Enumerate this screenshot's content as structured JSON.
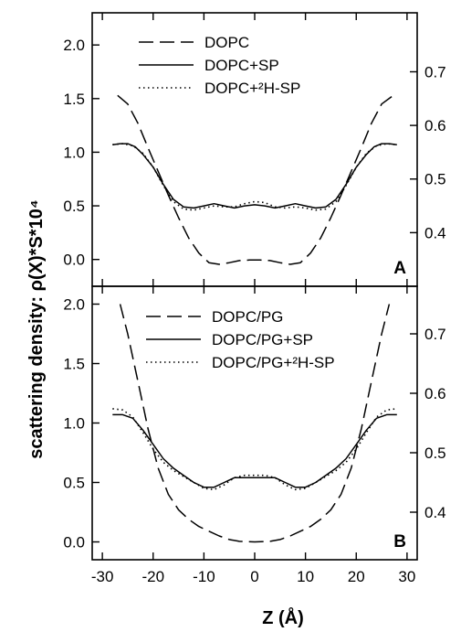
{
  "chart_data": {
    "type": "line",
    "shared_x_axis": {
      "label": "Z (Å)",
      "xlim": [
        -32,
        32
      ],
      "ticks": [
        -30,
        -20,
        -10,
        0,
        10,
        20,
        30
      ],
      "tick_labels": [
        "-30",
        "-20",
        "-10",
        "0",
        "10",
        "20",
        "30"
      ]
    },
    "shared_y_label": "scattering density: ρ(X)*S*10⁴",
    "panels": [
      {
        "letter": "A",
        "ylim_left": [
          -0.25,
          2.3
        ],
        "yticks_left": [
          0.0,
          0.5,
          1.0,
          1.5,
          2.0
        ],
        "ytick_labels_left": [
          "0.0",
          "0.5",
          "1.0",
          "1.5",
          "2.0"
        ],
        "yticks_right": [
          0.4,
          0.5,
          0.6,
          0.7
        ],
        "ytick_labels_right": [
          "0.4",
          "0.5",
          "0.6",
          "0.7"
        ],
        "right_axis_map": {
          "left_value_a": 0.0,
          "right_value_a": 0.35,
          "left_value_b": 2.0,
          "right_value_b": 0.75
        },
        "series": [
          {
            "name": "DOPC",
            "style": "dashed",
            "points": [
              [
                -27,
                1.53
              ],
              [
                -25,
                1.45
              ],
              [
                -23,
                1.27
              ],
              [
                -21,
                1.04
              ],
              [
                -19,
                0.82
              ],
              [
                -17,
                0.6
              ],
              [
                -15,
                0.39
              ],
              [
                -13,
                0.2
              ],
              [
                -11,
                0.06
              ],
              [
                -9,
                -0.03
              ],
              [
                -7,
                -0.045
              ],
              [
                -5,
                -0.03
              ],
              [
                -3,
                -0.01
              ],
              [
                -1,
                -0.005
              ],
              [
                0,
                -0.005
              ],
              [
                1,
                -0.005
              ],
              [
                3,
                -0.01
              ],
              [
                5,
                -0.03
              ],
              [
                7,
                -0.045
              ],
              [
                9,
                -0.03
              ],
              [
                11,
                0.06
              ],
              [
                13,
                0.2
              ],
              [
                15,
                0.39
              ],
              [
                17,
                0.6
              ],
              [
                19,
                0.82
              ],
              [
                21,
                1.04
              ],
              [
                23,
                1.27
              ],
              [
                25,
                1.45
              ],
              [
                27,
                1.52
              ]
            ]
          },
          {
            "name": "DOPC+SP",
            "style": "solid",
            "points": [
              [
                -28,
                1.07
              ],
              [
                -26.5,
                1.08
              ],
              [
                -25,
                1.08
              ],
              [
                -23.5,
                1.05
              ],
              [
                -22,
                0.98
              ],
              [
                -20,
                0.86
              ],
              [
                -18,
                0.7
              ],
              [
                -16,
                0.56
              ],
              [
                -14,
                0.49
              ],
              [
                -12,
                0.48
              ],
              [
                -10,
                0.5
              ],
              [
                -8,
                0.52
              ],
              [
                -6,
                0.5
              ],
              [
                -4,
                0.48
              ],
              [
                -2,
                0.5
              ],
              [
                0,
                0.51
              ],
              [
                2,
                0.5
              ],
              [
                4,
                0.48
              ],
              [
                6,
                0.5
              ],
              [
                8,
                0.52
              ],
              [
                10,
                0.5
              ],
              [
                12,
                0.48
              ],
              [
                14,
                0.49
              ],
              [
                16,
                0.56
              ],
              [
                18,
                0.7
              ],
              [
                20,
                0.86
              ],
              [
                22,
                0.98
              ],
              [
                23.5,
                1.05
              ],
              [
                25,
                1.08
              ],
              [
                26.5,
                1.08
              ],
              [
                28,
                1.07
              ]
            ]
          },
          {
            "name": "DOPC+²H-SP",
            "style": "dotted",
            "points": [
              [
                -28,
                1.07
              ],
              [
                -26,
                1.08
              ],
              [
                -24,
                1.06
              ],
              [
                -22,
                0.99
              ],
              [
                -20,
                0.86
              ],
              [
                -18,
                0.69
              ],
              [
                -16,
                0.54
              ],
              [
                -14,
                0.47
              ],
              [
                -12,
                0.46
              ],
              [
                -10,
                0.48
              ],
              [
                -8,
                0.5
              ],
              [
                -6,
                0.49
              ],
              [
                -4,
                0.49
              ],
              [
                -2,
                0.52
              ],
              [
                0,
                0.54
              ],
              [
                2,
                0.53
              ],
              [
                4,
                0.49
              ],
              [
                6,
                0.48
              ],
              [
                8,
                0.49
              ],
              [
                10,
                0.48
              ],
              [
                12,
                0.46
              ],
              [
                14,
                0.47
              ],
              [
                16,
                0.54
              ],
              [
                18,
                0.69
              ],
              [
                20,
                0.86
              ],
              [
                22,
                0.99
              ],
              [
                24,
                1.06
              ],
              [
                26,
                1.08
              ],
              [
                28,
                1.07
              ]
            ]
          }
        ]
      },
      {
        "letter": "B",
        "ylim_left": [
          -0.15,
          2.15
        ],
        "yticks_left": [
          0.0,
          0.5,
          1.0,
          1.5,
          2.0
        ],
        "ytick_labels_left": [
          "0.0",
          "0.5",
          "1.0",
          "1.5",
          "2.0"
        ],
        "yticks_right": [
          0.4,
          0.5,
          0.6,
          0.7
        ],
        "ytick_labels_right": [
          "0.4",
          "0.5",
          "0.6",
          "0.7"
        ],
        "right_axis_map": {
          "left_value_a": 0.0,
          "right_value_a": 0.35,
          "left_value_b": 2.0,
          "right_value_b": 0.75
        },
        "series": [
          {
            "name": "DOPC/PG",
            "style": "dashed",
            "points": [
              [
                -26.5,
                2.0
              ],
              [
                -25,
                1.75
              ],
              [
                -23,
                1.35
              ],
              [
                -21,
                0.95
              ],
              [
                -19,
                0.62
              ],
              [
                -17,
                0.4
              ],
              [
                -15,
                0.27
              ],
              [
                -13,
                0.19
              ],
              [
                -11,
                0.13
              ],
              [
                -9,
                0.09
              ],
              [
                -7,
                0.05
              ],
              [
                -5,
                0.02
              ],
              [
                -3,
                0.005
              ],
              [
                0,
                0.0
              ],
              [
                3,
                0.005
              ],
              [
                5,
                0.02
              ],
              [
                7,
                0.05
              ],
              [
                9,
                0.09
              ],
              [
                11,
                0.13
              ],
              [
                13,
                0.19
              ],
              [
                15,
                0.27
              ],
              [
                17,
                0.4
              ],
              [
                19,
                0.62
              ],
              [
                21,
                0.95
              ],
              [
                23,
                1.35
              ],
              [
                25,
                1.75
              ],
              [
                26.5,
                2.0
              ]
            ]
          },
          {
            "name": "DOPC/PG+SP",
            "style": "solid",
            "points": [
              [
                -28,
                1.07
              ],
              [
                -26,
                1.07
              ],
              [
                -24,
                1.04
              ],
              [
                -22,
                0.94
              ],
              [
                -20,
                0.82
              ],
              [
                -18,
                0.7
              ],
              [
                -16,
                0.62
              ],
              [
                -14,
                0.56
              ],
              [
                -12,
                0.5
              ],
              [
                -10,
                0.46
              ],
              [
                -8,
                0.46
              ],
              [
                -6,
                0.5
              ],
              [
                -4,
                0.54
              ],
              [
                -2,
                0.54
              ],
              [
                0,
                0.54
              ],
              [
                2,
                0.54
              ],
              [
                4,
                0.54
              ],
              [
                6,
                0.5
              ],
              [
                8,
                0.46
              ],
              [
                10,
                0.46
              ],
              [
                12,
                0.5
              ],
              [
                14,
                0.56
              ],
              [
                16,
                0.62
              ],
              [
                18,
                0.7
              ],
              [
                20,
                0.82
              ],
              [
                22,
                0.94
              ],
              [
                24,
                1.04
              ],
              [
                26,
                1.07
              ],
              [
                28,
                1.07
              ]
            ]
          },
          {
            "name": "DOPC/PG+²H-SP",
            "style": "dotted",
            "points": [
              [
                -28,
                1.12
              ],
              [
                -26,
                1.11
              ],
              [
                -24,
                1.05
              ],
              [
                -22,
                0.92
              ],
              [
                -20,
                0.78
              ],
              [
                -18,
                0.67
              ],
              [
                -16,
                0.6
              ],
              [
                -14,
                0.55
              ],
              [
                -12,
                0.5
              ],
              [
                -10,
                0.45
              ],
              [
                -8,
                0.44
              ],
              [
                -6,
                0.48
              ],
              [
                -4,
                0.54
              ],
              [
                -2,
                0.56
              ],
              [
                0,
                0.56
              ],
              [
                2,
                0.56
              ],
              [
                4,
                0.54
              ],
              [
                6,
                0.48
              ],
              [
                8,
                0.44
              ],
              [
                10,
                0.45
              ],
              [
                12,
                0.5
              ],
              [
                14,
                0.55
              ],
              [
                16,
                0.6
              ],
              [
                18,
                0.67
              ],
              [
                20,
                0.78
              ],
              [
                22,
                0.92
              ],
              [
                24,
                1.05
              ],
              [
                26,
                1.11
              ],
              [
                28,
                1.12
              ]
            ]
          }
        ]
      }
    ]
  }
}
